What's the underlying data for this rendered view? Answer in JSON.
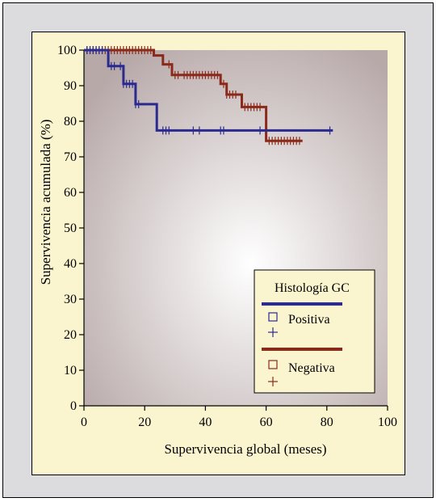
{
  "chart_data": {
    "type": "line",
    "subtype": "kaplan-meier",
    "xlabel": "Supervivencia global (meses)",
    "ylabel": "Supervivencia acumulada (%)",
    "xlim": [
      0,
      100
    ],
    "ylim": [
      0,
      100
    ],
    "xticks": [
      0,
      20,
      40,
      60,
      80,
      100
    ],
    "yticks": [
      0,
      10,
      20,
      30,
      40,
      50,
      60,
      70,
      80,
      90,
      100
    ],
    "grid": false,
    "legend": {
      "title": "Histología GC",
      "placement": "bottom-right",
      "entries": [
        {
          "label": "Positiva",
          "color": "#2a2a8f"
        },
        {
          "label": "Negativa",
          "color": "#8b2a1a"
        }
      ]
    },
    "series": [
      {
        "name": "Positiva",
        "color": "#2a2a8f",
        "step_points": [
          [
            0,
            100
          ],
          [
            8,
            100
          ],
          [
            8,
            95.5
          ],
          [
            13,
            95.5
          ],
          [
            13,
            90.5
          ],
          [
            17,
            90.5
          ],
          [
            17,
            84.8
          ],
          [
            24,
            84.8
          ],
          [
            24,
            77.4
          ],
          [
            82,
            77.4
          ]
        ],
        "censored": [
          1,
          2,
          3,
          4,
          5,
          6,
          9,
          10,
          12,
          13,
          14,
          15,
          16,
          17,
          18,
          26,
          27,
          28,
          36,
          38,
          45,
          46,
          58,
          81
        ]
      },
      {
        "name": "Negativa",
        "color": "#8b2a1a",
        "step_points": [
          [
            0,
            100
          ],
          [
            23,
            100
          ],
          [
            23,
            98.5
          ],
          [
            26,
            98.5
          ],
          [
            26,
            96
          ],
          [
            29,
            96
          ],
          [
            29,
            93
          ],
          [
            45,
            93
          ],
          [
            45,
            90.5
          ],
          [
            47,
            90.5
          ],
          [
            47,
            87.5
          ],
          [
            52,
            87.5
          ],
          [
            52,
            84
          ],
          [
            60,
            84
          ],
          [
            60,
            74.5
          ],
          [
            72,
            74.5
          ]
        ],
        "censored": [
          1,
          2,
          3,
          4,
          5,
          6,
          7,
          8,
          9,
          10,
          11,
          12,
          13,
          14,
          15,
          16,
          17,
          18,
          19,
          20,
          21,
          22,
          28,
          30,
          31,
          33,
          34,
          35,
          36,
          37,
          38,
          39,
          40,
          41,
          42,
          43,
          44,
          46,
          47,
          48,
          49,
          50,
          53,
          54,
          55,
          56,
          57,
          58,
          61,
          62,
          63,
          64,
          65,
          66,
          67,
          68,
          69,
          70,
          71
        ]
      }
    ]
  }
}
